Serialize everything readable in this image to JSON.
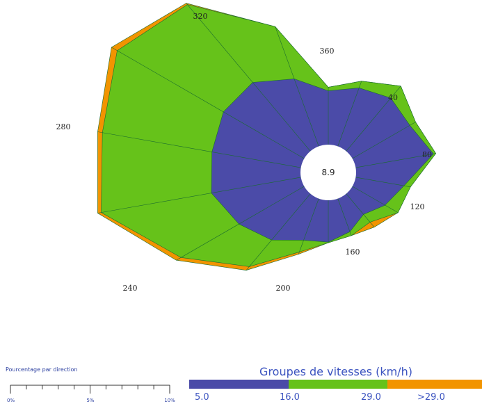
{
  "chart_data": {
    "type": "wind-rose",
    "direction_labels": [
      "320",
      "360",
      "40",
      "80",
      "120",
      "160",
      "200",
      "240",
      "280"
    ],
    "calm_value": "8.9",
    "speed_legend": {
      "title": "Groupes de vitesses (km/h)",
      "ticks": [
        "5.0",
        "16.0",
        "29.0",
        ">29.0"
      ],
      "colors": [
        "#4b4ba8",
        "#66c21a",
        "#f29400"
      ]
    },
    "percent_scale": {
      "title": "Pourcentage par direction",
      "ticks": [
        "0%",
        "5%",
        "10%"
      ],
      "max": 10
    },
    "colors": {
      "bin1": "#4b4ba8",
      "bin2": "#66c21a",
      "bin3": "#f29400",
      "lines": "#1a6b2f"
    },
    "directions_deg": [
      0,
      20,
      40,
      60,
      80,
      100,
      120,
      140,
      160,
      180,
      200,
      220,
      240,
      260,
      280,
      300,
      320,
      340
    ],
    "series": [
      {
        "range": "5.0-16.0",
        "values": [
          9.0,
          10.4,
          11.6,
          11.1,
          13.2,
          8.2,
          6.3,
          4.5,
          5.9,
          7.0,
          7.4,
          10.1,
          12.6,
          15.2,
          15.1,
          15.6,
          15.0,
          12.0
        ]
      },
      {
        "range": "16.0-29.0",
        "values": [
          0.6,
          1.2,
          2.6,
          1.1,
          0.4,
          1.1,
          2.5,
          1.7,
          0.7,
          0.1,
          2.1,
          5.8,
          11.2,
          18.7,
          18.6,
          20.5,
          17.0,
          9.3
        ]
      },
      {
        "range": ">29.0",
        "values": [
          0.0,
          0.0,
          0.0,
          0.0,
          0.0,
          0.0,
          0.0,
          1.1,
          0.0,
          0.0,
          0.4,
          0.8,
          0.9,
          0.6,
          0.8,
          1.1,
          0.3,
          0.0
        ]
      }
    ]
  }
}
